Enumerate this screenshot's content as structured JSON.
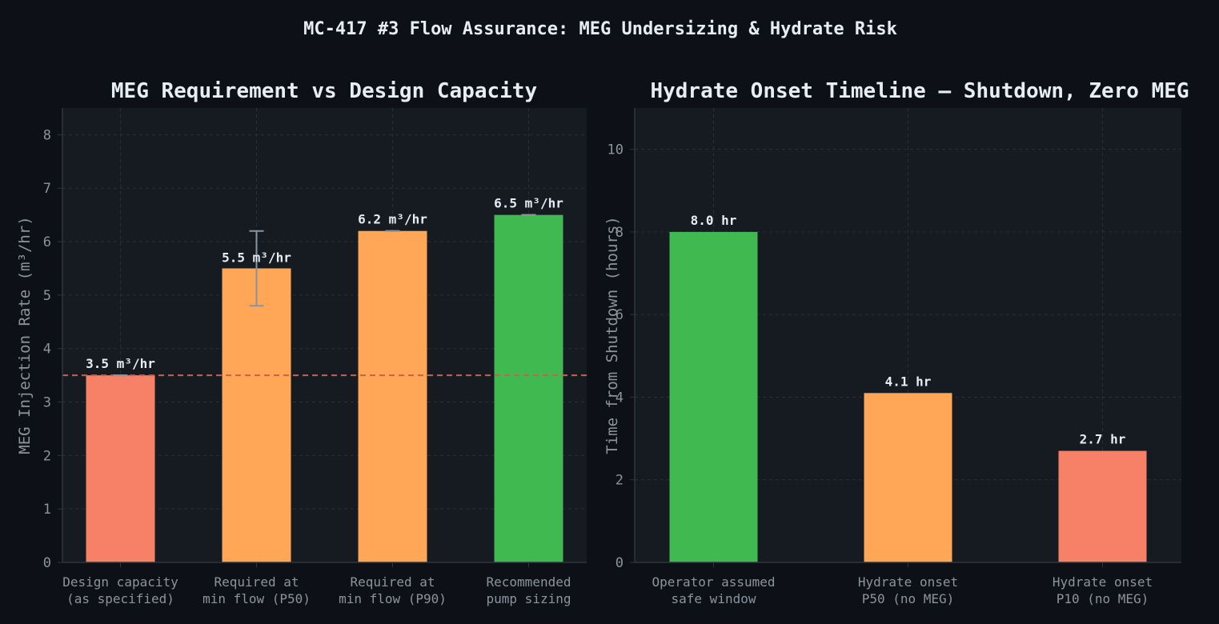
{
  "suptitle": "MC-417 #3 Flow Assurance: MEG Undersizing & Hydrate Risk",
  "colors": {
    "background": "#0d1117",
    "plot_background": "#161b22",
    "grid": "#2a2f38",
    "text": "#e6edf3",
    "muted_text": "#8b949e",
    "red": "#f78166",
    "orange": "#ffa657",
    "green": "#3fb950",
    "reference_line": "#c0634f",
    "error_bar": "#8b949e"
  },
  "chart_data": [
    {
      "type": "bar",
      "title": "MEG Requirement vs Design Capacity",
      "xlabel": "",
      "ylabel": "MEG Injection Rate (m³/hr)",
      "ylim": [
        0,
        8.5
      ],
      "yticks": [
        0,
        1,
        2,
        3,
        4,
        5,
        6,
        7,
        8
      ],
      "grid": true,
      "categories": [
        [
          "Design capacity",
          "(as specified)"
        ],
        [
          "Required at",
          "min flow (P50)"
        ],
        [
          "Required at",
          "min flow (P90)"
        ],
        [
          "Recommended",
          "pump sizing"
        ]
      ],
      "values": [
        3.5,
        5.5,
        6.2,
        6.5
      ],
      "value_labels": [
        "3.5 m³/hr",
        "5.5 m³/hr",
        "6.2 m³/hr",
        "6.5 m³/hr"
      ],
      "bar_colors": [
        "#f78166",
        "#ffa657",
        "#ffa657",
        "#3fb950"
      ],
      "error_bars": [
        {
          "low": 3.5,
          "high": 3.5
        },
        {
          "low": 4.8,
          "high": 6.2
        },
        {
          "low": 6.2,
          "high": 6.2
        },
        {
          "low": 6.5,
          "high": 6.5
        }
      ],
      "reference_line": {
        "y": 3.5,
        "style": "dashed"
      }
    },
    {
      "type": "bar",
      "title": "Hydrate Onset Timeline — Shutdown, Zero MEG",
      "xlabel": "",
      "ylabel": "Time from Shutdown (hours)",
      "ylim": [
        0,
        11
      ],
      "yticks": [
        0,
        2,
        4,
        6,
        8,
        10
      ],
      "grid": true,
      "categories": [
        [
          "Operator assumed",
          "safe window"
        ],
        [
          "Hydrate onset",
          "P50 (no MEG)"
        ],
        [
          "Hydrate onset",
          "P10 (no MEG)"
        ]
      ],
      "values": [
        8.0,
        4.1,
        2.7
      ],
      "value_labels": [
        "8.0 hr",
        "4.1 hr",
        "2.7 hr"
      ],
      "bar_colors": [
        "#3fb950",
        "#ffa657",
        "#f78166"
      ]
    }
  ]
}
